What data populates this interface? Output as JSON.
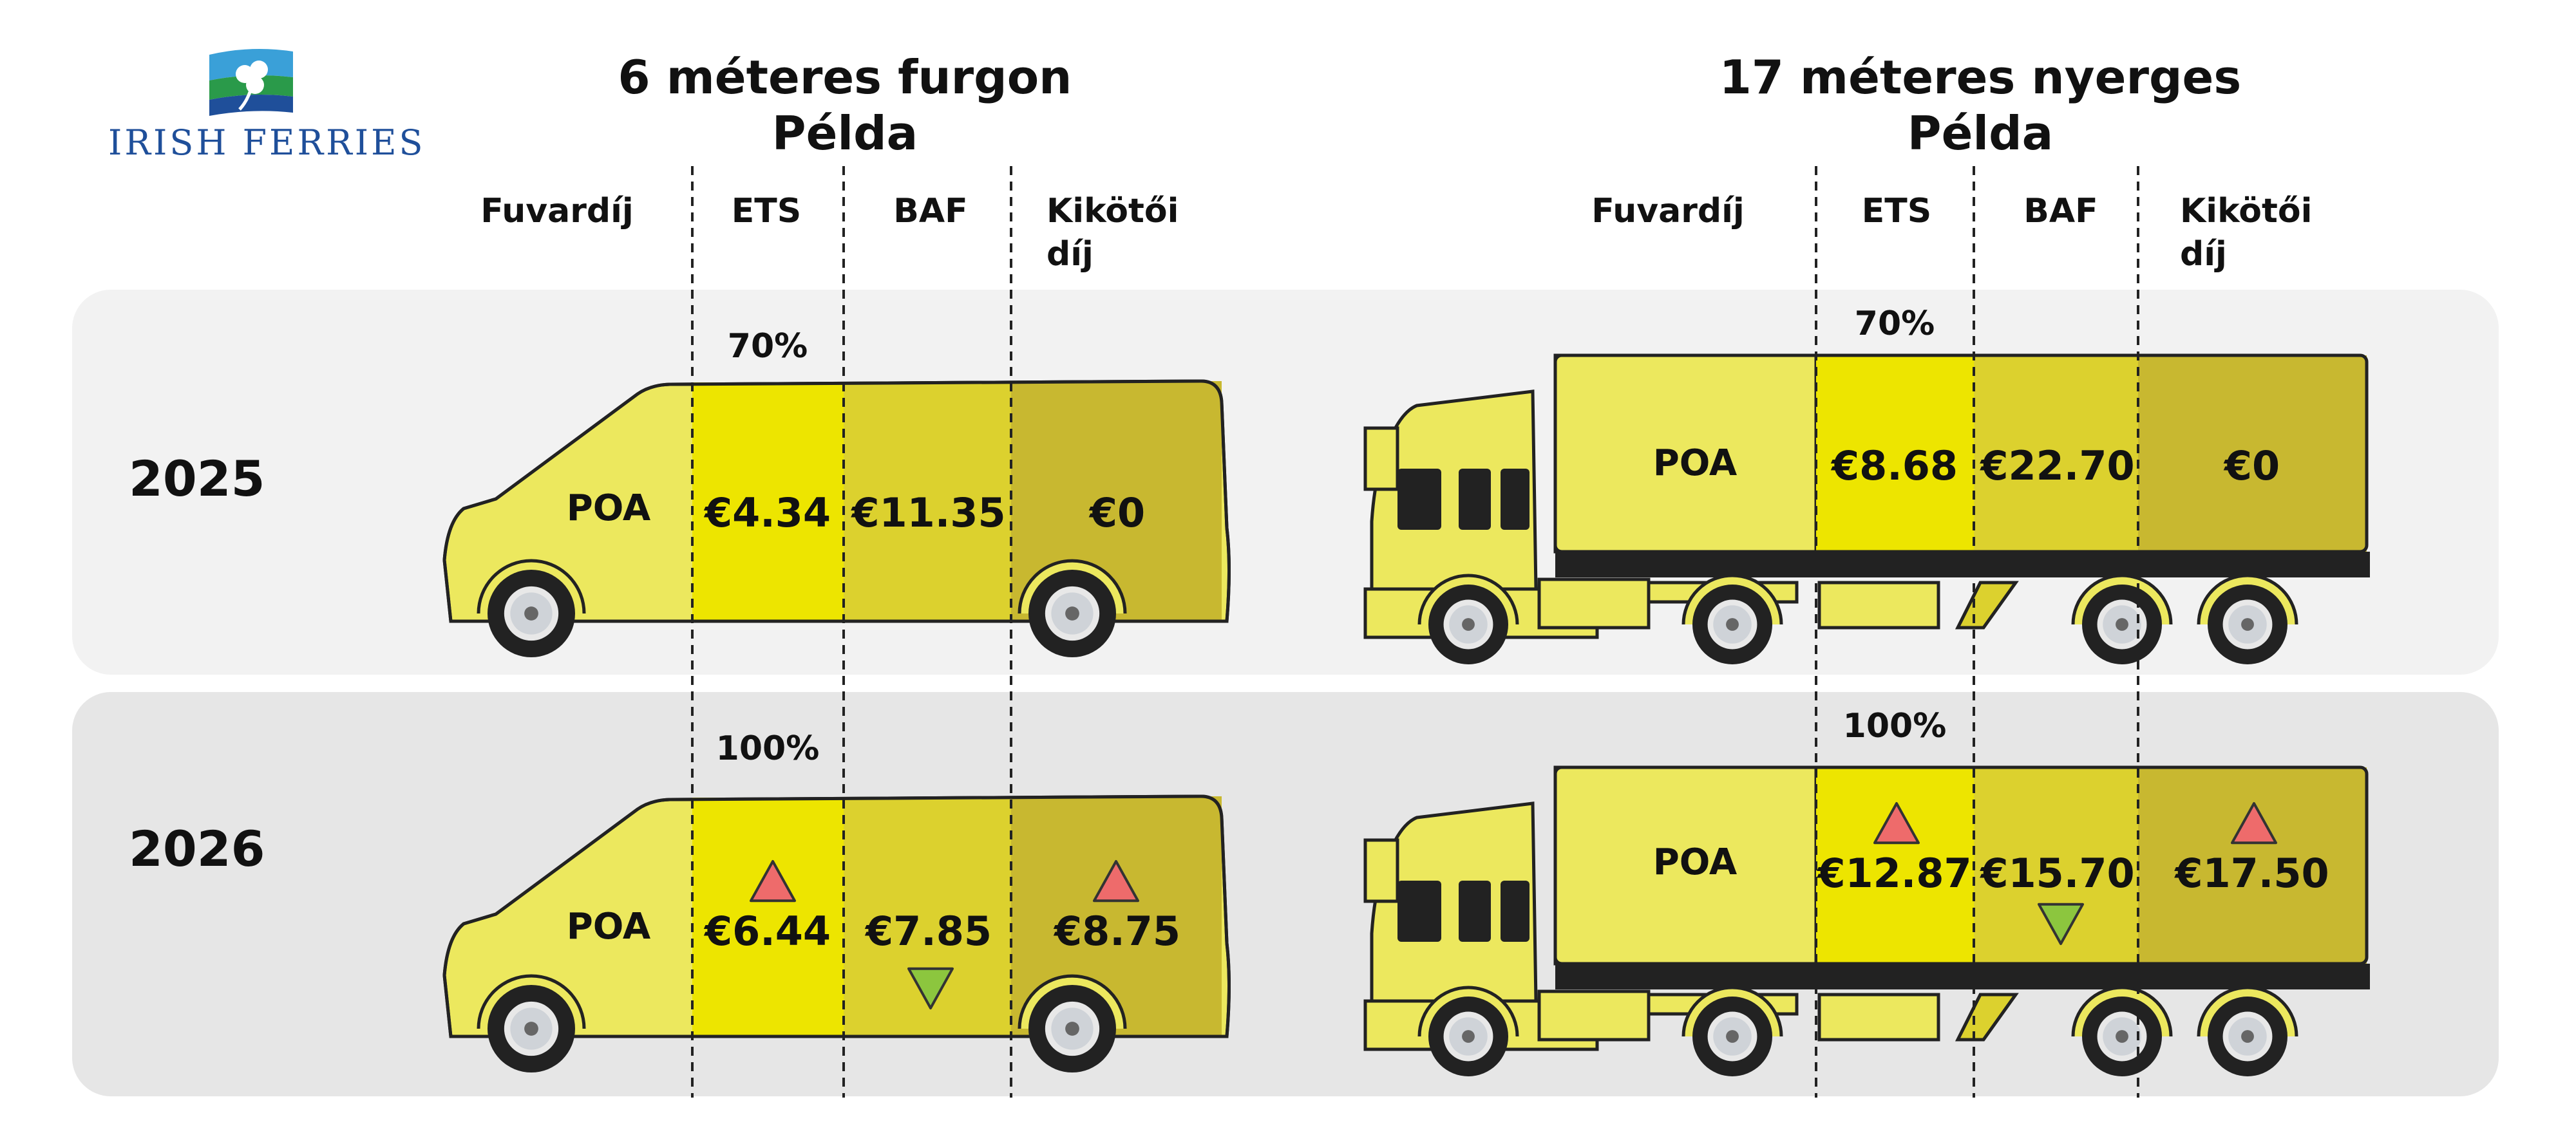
{
  "brand": {
    "name": "IRISH FERRIES",
    "color": "#1f4f9a"
  },
  "colors": {
    "freight": "#ece85e",
    "ets": "#ede500",
    "baf": "#dcd12e",
    "port": "#c8b830",
    "row_bg_2025": "#f2f2f2",
    "row_bg_2026": "#e6e6e6",
    "up": "#ee6b6b",
    "down": "#8cc63e"
  },
  "van": {
    "title_line1": "6 méteres furgon",
    "title_line2": "Példa",
    "headers": {
      "freight": "Fuvardíj",
      "ets": "ETS",
      "baf": "BAF",
      "port_line1": "Kikötői",
      "port_line2": "díj"
    }
  },
  "truck": {
    "title_line1": "17 méteres nyerges",
    "title_line2": "Példa",
    "headers": {
      "freight": "Fuvardíj",
      "ets": "ETS",
      "baf": "BAF",
      "port_line1": "Kikötői",
      "port_line2": "díj"
    }
  },
  "rows": [
    {
      "year": "2025",
      "van": {
        "ets_pct": "70%",
        "freight": "POA",
        "ets": "€4.34",
        "baf": "€11.35",
        "port": "€0",
        "ets_trend": "",
        "baf_trend": "",
        "port_trend": ""
      },
      "truck": {
        "ets_pct": "70%",
        "freight": "POA",
        "ets": "€8.68",
        "baf": "€22.70",
        "port": "€0",
        "ets_trend": "",
        "baf_trend": "",
        "port_trend": ""
      }
    },
    {
      "year": "2026",
      "van": {
        "ets_pct": "100%",
        "freight": "POA",
        "ets": "€6.44",
        "baf": "€7.85",
        "port": "€8.75",
        "ets_trend": "up",
        "baf_trend": "down",
        "port_trend": "up"
      },
      "truck": {
        "ets_pct": "100%",
        "freight": "POA",
        "ets": "€12.87",
        "baf": "€15.70",
        "port": "€17.50",
        "ets_trend": "up",
        "baf_trend": "down",
        "port_trend": "up"
      }
    }
  ]
}
